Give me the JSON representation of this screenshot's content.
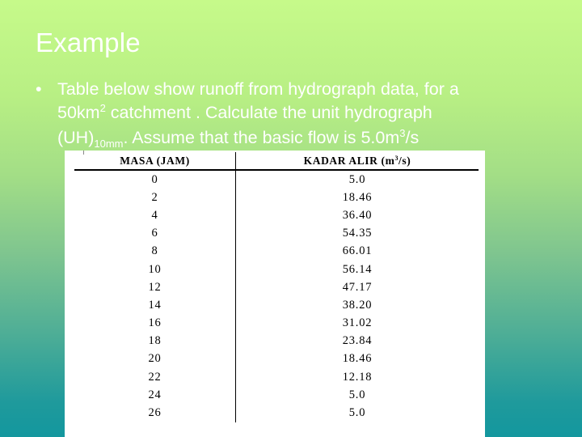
{
  "slide": {
    "title": "Example",
    "bullet_symbol": "•",
    "text": {
      "line1": "Table below show runoff from hydrograph data, for a",
      "line2_pre": "50km",
      "line2_sup": "2",
      "line2_post": " catchment .  Calculate the unit hydrograph",
      "line3_pre": "(UH)",
      "line3_sub": "10mm",
      "line3_mid": ".  Assume that the basic flow is 5.0m",
      "line3_sup": "3",
      "line3_post": "/s"
    }
  },
  "table": {
    "headers": {
      "time": "MASA (JAM)",
      "flow_pre": "KADAR ALIR (m",
      "flow_sup": "3",
      "flow_post": "/s)"
    },
    "rows": [
      {
        "time": "0",
        "flow": "5.0"
      },
      {
        "time": "2",
        "flow": "18.46"
      },
      {
        "time": "4",
        "flow": "36.40"
      },
      {
        "time": "6",
        "flow": "54.35"
      },
      {
        "time": "8",
        "flow": "66.01"
      },
      {
        "time": "10",
        "flow": "56.14"
      },
      {
        "time": "12",
        "flow": "47.17"
      },
      {
        "time": "14",
        "flow": "38.20"
      },
      {
        "time": "16",
        "flow": "31.02"
      },
      {
        "time": "18",
        "flow": "23.84"
      },
      {
        "time": "20",
        "flow": "18.46"
      },
      {
        "time": "22",
        "flow": "12.18"
      },
      {
        "time": "24",
        "flow": "5.0"
      },
      {
        "time": "26",
        "flow": "5.0"
      }
    ]
  },
  "colors": {
    "background_top": "#c6fa8a",
    "background_bottom": "#13979e",
    "text": "#ffffff",
    "table_bg": "#ffffff"
  }
}
